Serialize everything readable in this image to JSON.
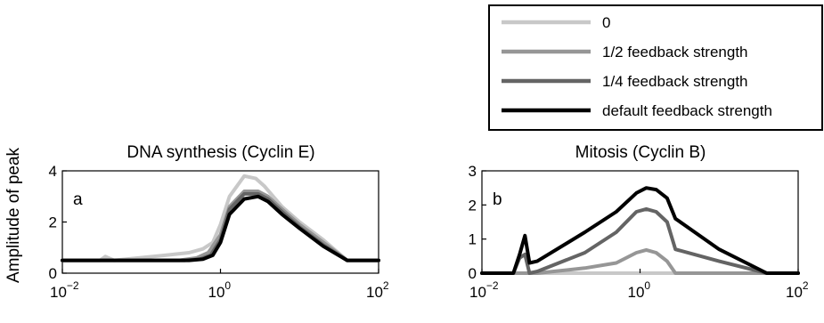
{
  "figure": {
    "ylabel": "Amplitude of  peak"
  },
  "legend": {
    "entries": [
      {
        "label": "0",
        "color": "#c8c8c8"
      },
      {
        "label": "1/2 feedback strength",
        "color": "#969696"
      },
      {
        "label": "1/4 feedback strength",
        "color": "#646464"
      },
      {
        "label": "default feedback strength",
        "color": "#000000"
      }
    ],
    "placement": "top-right"
  },
  "chart_data": [
    {
      "type": "line",
      "title": "DNA synthesis (Cyclin E)",
      "panel_label": "a",
      "xscale": "log",
      "xlim": [
        0.01,
        100
      ],
      "ylim": [
        0,
        4
      ],
      "xticks": [
        {
          "base": "10",
          "exp": "−2"
        },
        {
          "base": "10",
          "exp": "0"
        },
        {
          "base": "10",
          "exp": "2"
        }
      ],
      "yticks": [
        "0",
        "2",
        "4"
      ],
      "series": [
        {
          "name": "0",
          "color": "#c8c8c8",
          "x": [
            0.01,
            0.03,
            0.035,
            0.045,
            0.2,
            0.4,
            0.6,
            0.8,
            1.0,
            1.3,
            2.0,
            2.8,
            3.6,
            6,
            10,
            20,
            40,
            60,
            100
          ],
          "y": [
            0.5,
            0.5,
            0.65,
            0.5,
            0.7,
            0.8,
            0.95,
            1.2,
            1.9,
            3.0,
            3.8,
            3.7,
            3.4,
            2.6,
            2.0,
            1.3,
            0.5,
            0.5,
            0.5
          ]
        },
        {
          "name": "1/2 feedback strength",
          "color": "#969696",
          "x": [
            0.01,
            0.3,
            0.5,
            0.7,
            1.0,
            1.3,
            2.0,
            3.0,
            4.0,
            6,
            10,
            20,
            40,
            60,
            100
          ],
          "y": [
            0.5,
            0.5,
            0.6,
            0.8,
            1.5,
            2.6,
            3.2,
            3.2,
            3.0,
            2.5,
            1.9,
            1.2,
            0.5,
            0.5,
            0.5
          ]
        },
        {
          "name": "1/4 feedback strength",
          "color": "#646464",
          "x": [
            0.01,
            0.35,
            0.55,
            0.75,
            1.0,
            1.3,
            2.0,
            3.0,
            4.0,
            6,
            10,
            20,
            40,
            60,
            100
          ],
          "y": [
            0.5,
            0.5,
            0.55,
            0.7,
            1.3,
            2.5,
            3.1,
            3.1,
            2.9,
            2.4,
            1.8,
            1.1,
            0.5,
            0.5,
            0.5
          ]
        },
        {
          "name": "default feedback strength",
          "color": "#000000",
          "x": [
            0.01,
            0.4,
            0.6,
            0.8,
            1.0,
            1.3,
            2.0,
            3.0,
            4.0,
            6,
            10,
            20,
            40,
            60,
            100
          ],
          "y": [
            0.5,
            0.5,
            0.55,
            0.7,
            1.2,
            2.3,
            2.9,
            3.0,
            2.8,
            2.3,
            1.75,
            1.05,
            0.5,
            0.5,
            0.5
          ]
        }
      ]
    },
    {
      "type": "line",
      "title": "Mitosis (Cyclin B)",
      "panel_label": "b",
      "xscale": "log",
      "xlim": [
        0.01,
        100
      ],
      "ylim": [
        0,
        3
      ],
      "xticks": [
        {
          "base": "10",
          "exp": "−2"
        },
        {
          "base": "10",
          "exp": "0"
        },
        {
          "base": "10",
          "exp": "2"
        }
      ],
      "yticks": [
        "0",
        "1",
        "2",
        "3"
      ],
      "series": [
        {
          "name": "0",
          "color": "#c8c8c8",
          "x": [
            0.01,
            100
          ],
          "y": [
            0.0,
            0.0
          ]
        },
        {
          "name": "1/2 feedback strength",
          "color": "#969696",
          "x": [
            0.01,
            0.05,
            0.2,
            0.5,
            0.9,
            1.2,
            1.6,
            2.2,
            2.8,
            100
          ],
          "y": [
            0.0,
            0.0,
            0.15,
            0.3,
            0.6,
            0.68,
            0.6,
            0.35,
            0.0,
            0.0
          ]
        },
        {
          "name": "1/4 feedback strength",
          "color": "#646464",
          "x": [
            0.01,
            0.025,
            0.03,
            0.035,
            0.04,
            0.05,
            0.2,
            0.5,
            0.9,
            1.2,
            1.6,
            2.2,
            2.8,
            10,
            40,
            100
          ],
          "y": [
            0.0,
            0.0,
            0.45,
            0.55,
            0.0,
            0.05,
            0.6,
            1.2,
            1.8,
            1.88,
            1.8,
            1.5,
            0.7,
            0.35,
            0.0,
            0.0
          ]
        },
        {
          "name": "default feedback strength",
          "color": "#000000",
          "x": [
            0.01,
            0.025,
            0.03,
            0.035,
            0.04,
            0.05,
            0.2,
            0.5,
            0.9,
            1.2,
            1.6,
            2.2,
            2.8,
            10,
            40,
            100
          ],
          "y": [
            0.0,
            0.0,
            0.55,
            1.1,
            0.3,
            0.35,
            1.2,
            1.8,
            2.35,
            2.5,
            2.45,
            2.2,
            1.6,
            0.7,
            0.0,
            0.0
          ]
        }
      ]
    }
  ]
}
